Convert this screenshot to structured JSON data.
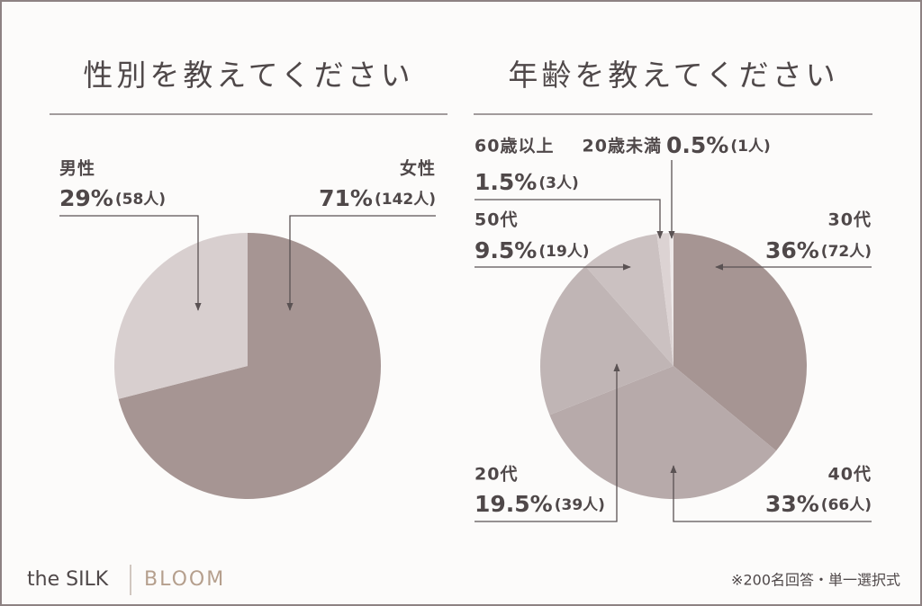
{
  "chart_data": [
    {
      "type": "pie",
      "title": "性別を教えてください",
      "categories": [
        "女性",
        "男性"
      ],
      "values": [
        71,
        29
      ],
      "value_labels": [
        "71%",
        "29%"
      ],
      "count_labels": [
        "(142人)",
        "(58人)"
      ],
      "colors": [
        "#a69593",
        "#d8cfcf"
      ]
    },
    {
      "type": "pie",
      "title": "年齢を教えてください",
      "categories": [
        "30代",
        "40代",
        "20代",
        "50代",
        "60歳以上",
        "20歳未満"
      ],
      "values": [
        36,
        33,
        19.5,
        9.5,
        1.5,
        0.5
      ],
      "value_labels": [
        "36%",
        "33%",
        "19.5%",
        "9.5%",
        "1.5%",
        "0.5%"
      ],
      "count_labels": [
        "(72人)",
        "(66人)",
        "(39人)",
        "(19人)",
        "(3人)",
        "(1人)"
      ],
      "colors": [
        "#a69593",
        "#b7aaaa",
        "#c0b5b5",
        "#cbc1c1",
        "#dcd3d3",
        "#eee9e9"
      ]
    }
  ],
  "footer": {
    "brand": "the SILK",
    "sub_brand": "BLOOM",
    "note": "※200名回答・単一選択式"
  }
}
